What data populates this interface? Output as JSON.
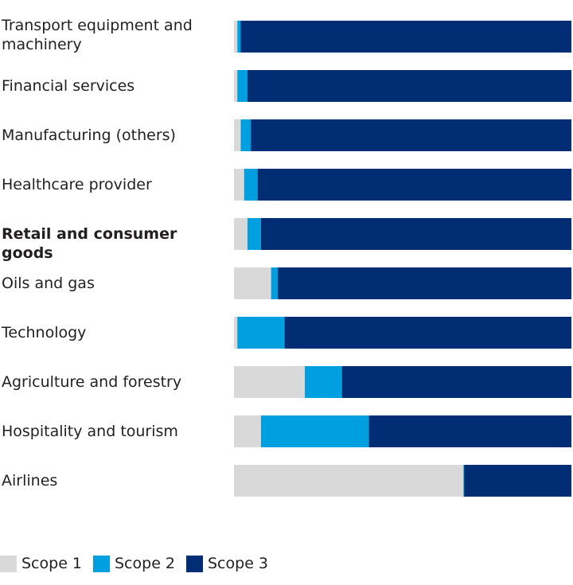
{
  "chart_data": {
    "type": "bar",
    "orientation": "horizontal",
    "stacked": true,
    "normalized_percent": true,
    "categories": [
      "Transport equipment and machinery",
      "Financial services",
      "Manufacturing (others)",
      "Healthcare provider",
      "Retail and consumer goods",
      "Oils and gas",
      "Technology",
      "Agriculture and forestry",
      "Hospitality and tourism",
      "Airlines"
    ],
    "highlighted_category": "Retail and consumer goods",
    "series": [
      {
        "name": "Scope 1",
        "color": "#d9d9d9",
        "values": [
          1,
          1,
          2,
          3,
          4,
          11,
          1,
          21,
          8,
          68
        ]
      },
      {
        "name": "Scope 2",
        "color": "#009fe0",
        "values": [
          1,
          3,
          3,
          4,
          4,
          2,
          14,
          11,
          32,
          0.2
        ]
      },
      {
        "name": "Scope 3",
        "color": "#002d74",
        "values": [
          98,
          96,
          95,
          93,
          92,
          87,
          85,
          68,
          60,
          31.8
        ]
      }
    ],
    "xlim": [
      0,
      100
    ],
    "grid": false,
    "axis_ticks_shown": false,
    "legend_position": "bottom-left"
  }
}
